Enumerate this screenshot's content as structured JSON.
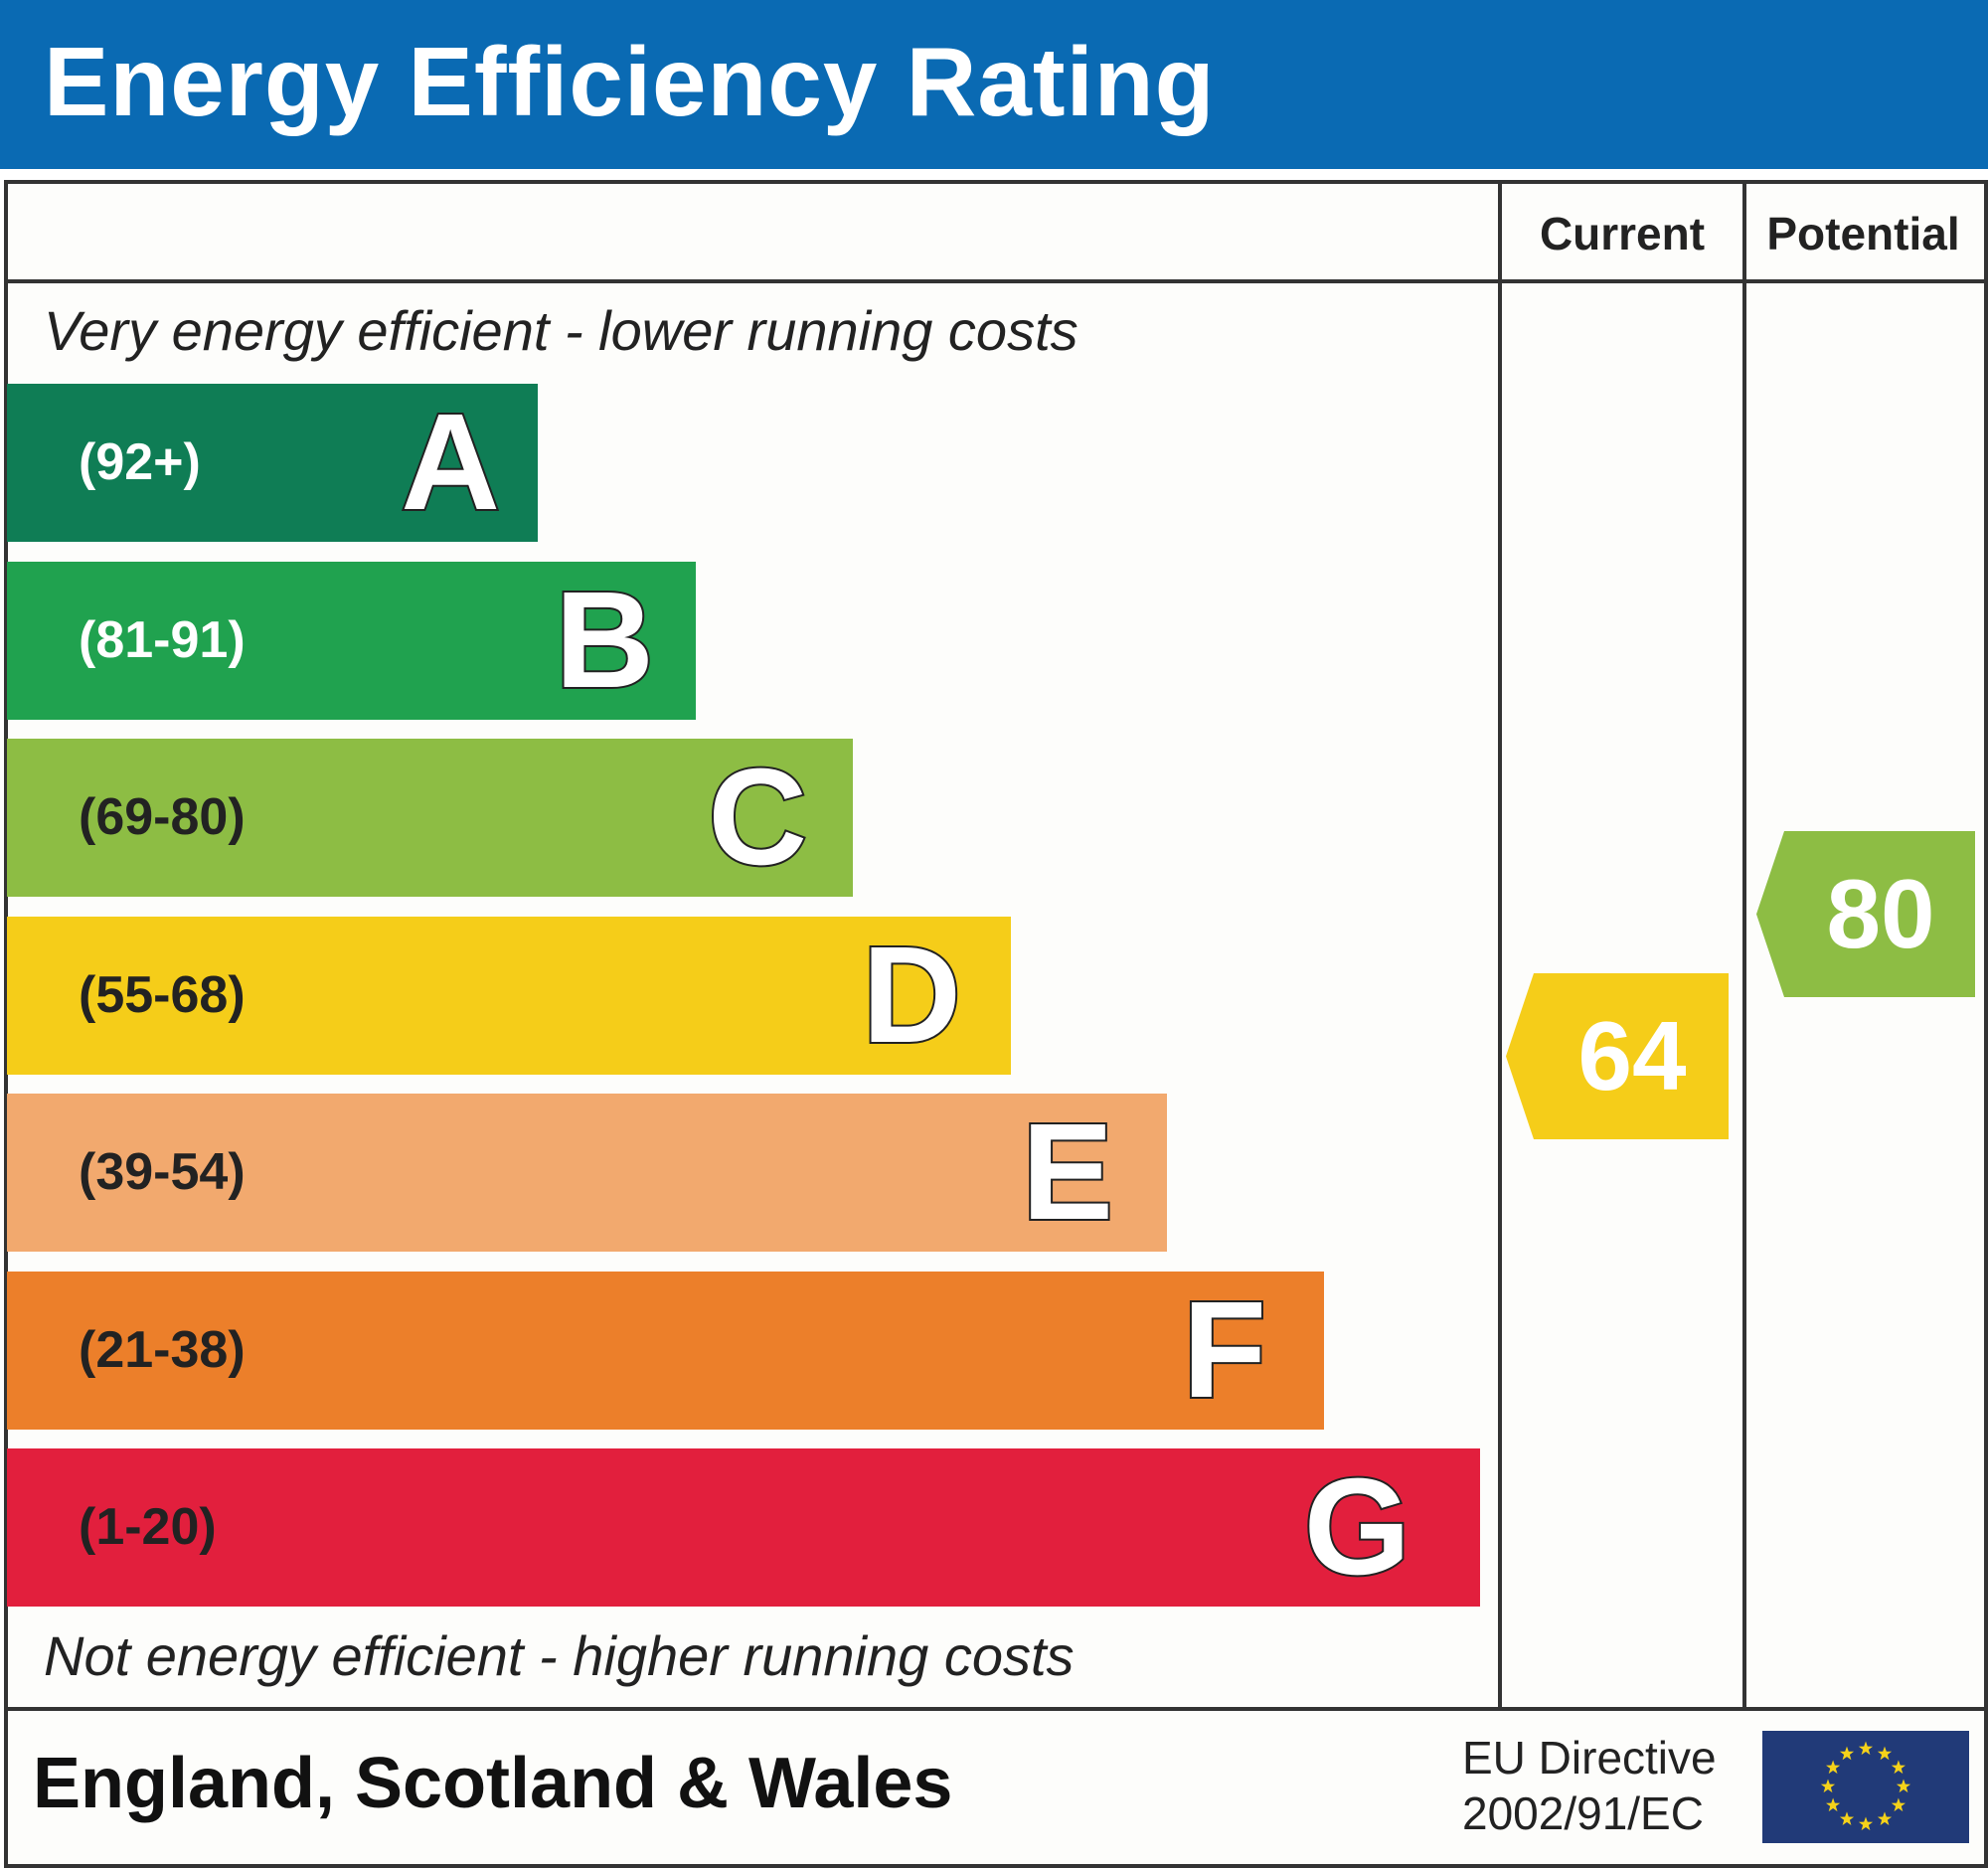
{
  "title": "Energy Efficiency Rating",
  "columns": {
    "current": "Current",
    "potential": "Potential"
  },
  "top_note": "Very energy efficient - lower running costs",
  "bottom_note": "Not energy efficient - higher running costs",
  "footer": {
    "region": "England, Scotland & Wales",
    "directive_line1": "EU Directive",
    "directive_line2": "2002/91/EC",
    "flag_icon": "eu-flag-icon"
  },
  "colors": {
    "header": "#0a6ab3",
    "eu_flag": "#213a78",
    "eu_stars": "#f5d21a"
  },
  "chart_data": {
    "type": "bar",
    "title": "Energy Efficiency Rating",
    "categories": [
      "A",
      "B",
      "C",
      "D",
      "E",
      "F",
      "G"
    ],
    "bands": [
      {
        "letter": "A",
        "range": "(92+)",
        "min": 92,
        "max": 100,
        "color": "#0f7d55",
        "text_color": "#ffffff"
      },
      {
        "letter": "B",
        "range": "(81-91)",
        "min": 81,
        "max": 91,
        "color": "#20a24f",
        "text_color": "#ffffff"
      },
      {
        "letter": "C",
        "range": "(69-80)",
        "min": 69,
        "max": 80,
        "color": "#8dbd44",
        "text_color": "#222222"
      },
      {
        "letter": "D",
        "range": "(55-68)",
        "min": 55,
        "max": 68,
        "color": "#f5cd19",
        "text_color": "#222222"
      },
      {
        "letter": "E",
        "range": "(39-54)",
        "min": 39,
        "max": 54,
        "color": "#f2a96e",
        "text_color": "#222222"
      },
      {
        "letter": "F",
        "range": "(21-38)",
        "min": 21,
        "max": 38,
        "color": "#ec7f2a",
        "text_color": "#222222"
      },
      {
        "letter": "G",
        "range": "(1-20)",
        "min": 1,
        "max": 20,
        "color": "#e21f3d",
        "text_color": "#222222"
      }
    ],
    "current": {
      "value": 64,
      "band": "D",
      "color": "#f5cd19"
    },
    "potential": {
      "value": 80,
      "band": "C",
      "color": "#8dbd44"
    }
  }
}
